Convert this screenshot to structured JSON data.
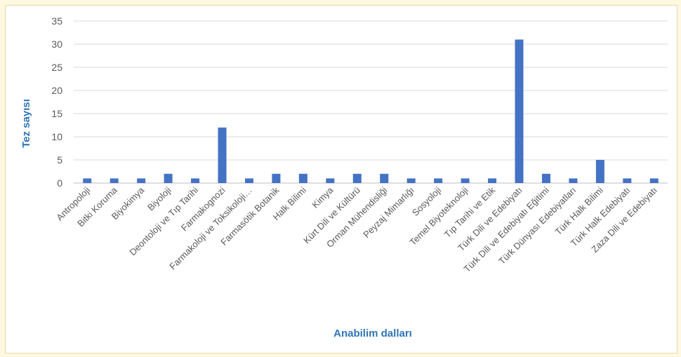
{
  "chart_data": {
    "type": "bar",
    "title": "",
    "xlabel": "Anabilim dalları",
    "ylabel": "Tez sayısı",
    "ylim": [
      0,
      35
    ],
    "yticks": [
      0,
      5,
      10,
      15,
      20,
      25,
      30,
      35
    ],
    "grid": true,
    "legend": "none",
    "categories": [
      "Antropoloji",
      "Bitki Koruma",
      "Biyokimya",
      "Biyoloji",
      "Deontoloji ve Tıp Tarihi",
      "Farmakognozi",
      "Farmakoloji ve Toksikoloji…",
      "Farmasötik Botanik",
      "Halk Bilimi",
      "Kimya",
      "Kürt Dili ve Kültürü",
      "Orman Mühendisliği",
      "Peyzaj Mimarlığı",
      "Sosyoloji",
      "Temel Biyoteknoloji",
      "Tıp Tarihi ve Etik",
      "Türk Dili ve Edebiyatı",
      "Türk Dili ve Edebiyatı Eğitimi",
      "Türk Dünyası Edebiyatları",
      "Türk Halk Bilimi",
      "Türk Halk Edebiyatı",
      "Zaza Dili ve Edebiyatı"
    ],
    "values": [
      1,
      1,
      1,
      2,
      1,
      12,
      1,
      2,
      2,
      1,
      2,
      2,
      1,
      1,
      1,
      1,
      31,
      2,
      1,
      5,
      1,
      1
    ],
    "colors": {
      "bar": "#4472c4",
      "axis_title": "#2e75b6",
      "tick_label": "#595959",
      "grid": "#d9d9d9"
    }
  }
}
